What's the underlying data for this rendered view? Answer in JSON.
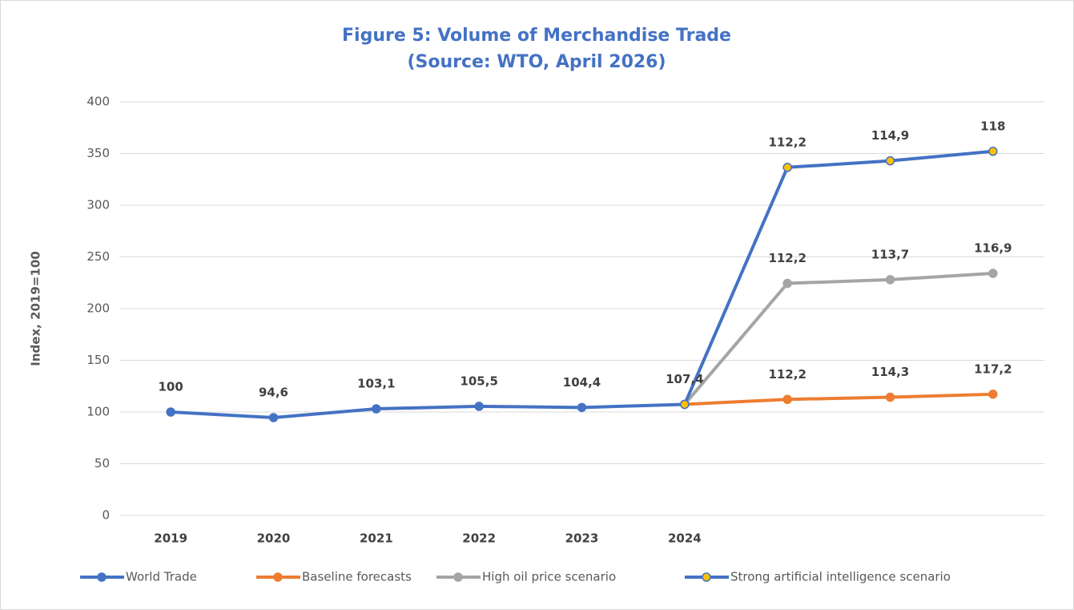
{
  "chart_data": {
    "type": "line",
    "title": "Figure 5: Volume of Merchandise Trade",
    "subtitle": "(Source: WTO, April 2026)",
    "y_label": "Index, 2019=100",
    "categories": [
      "2019",
      "2020",
      "2021",
      "2022",
      "2023",
      "2024",
      null,
      null,
      null
    ],
    "ylim": [
      0,
      400
    ],
    "yticks": [
      0,
      50,
      100,
      150,
      200,
      250,
      300,
      350,
      400
    ],
    "grid": true,
    "legend": "bottom",
    "series": [
      {
        "name": "World Trade",
        "color": "#4472c4",
        "marker_color": "#4472c4",
        "stacked": false,
        "values": [
          100,
          94.6,
          103.1,
          105.5,
          104.4,
          107.4,
          null,
          null,
          null
        ],
        "value_labels": [
          "100",
          "94,6",
          "103,1",
          "105,5",
          "104,4",
          "107,4",
          null,
          null,
          null
        ]
      },
      {
        "name": "Baseline forecasts",
        "color": "#ed7d31",
        "marker_color": "#ed7d31",
        "stacked": true,
        "values": [
          null,
          null,
          null,
          null,
          null,
          107.4,
          112.2,
          114.3,
          117.2
        ],
        "value_labels": [
          null,
          null,
          null,
          null,
          null,
          null,
          "112,2",
          "114,3",
          "117,2"
        ]
      },
      {
        "name": "High oil price scenario",
        "color": "#a5a5a5",
        "marker_color": "#a5a5a5",
        "stacked": true,
        "values": [
          null,
          null,
          null,
          null,
          null,
          0,
          112.2,
          113.7,
          116.9
        ],
        "value_labels": [
          null,
          null,
          null,
          null,
          null,
          null,
          "112,2",
          "113,7",
          "116,9"
        ]
      },
      {
        "name": "Strong artificial intelligence scenario",
        "color": "#4472c4",
        "marker_color": "#ffc000",
        "stacked": true,
        "values": [
          null,
          null,
          null,
          null,
          null,
          0,
          112.2,
          114.9,
          118
        ],
        "value_labels": [
          null,
          null,
          null,
          null,
          null,
          null,
          "112,2",
          "114,9",
          "118"
        ]
      }
    ]
  }
}
